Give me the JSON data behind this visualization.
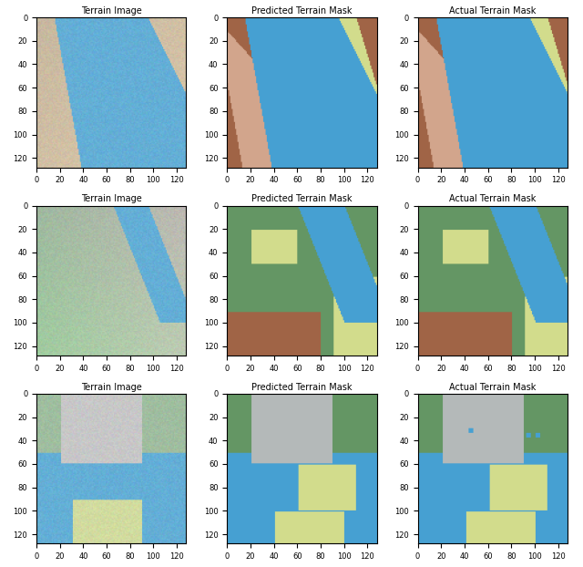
{
  "titles": [
    [
      "Terrain Image",
      "Predicted Terrain Mask",
      "Actual Terrain Mask"
    ],
    [
      "Terrain Image",
      "Predicted Terrain Mask",
      "Actual Terrain Mask"
    ],
    [
      "Terrain Image",
      "Predicted Terrain Mask",
      "Actual Terrain Mask"
    ]
  ],
  "figsize": [
    6.4,
    6.22
  ],
  "dpi": 100,
  "colors": {
    "water_blue": [
      70,
      160,
      210
    ],
    "sand_beige": [
      210,
      190,
      160
    ],
    "brown_dark": [
      160,
      100,
      70
    ],
    "brown_light": [
      210,
      165,
      140
    ],
    "yellow_green": [
      210,
      220,
      140
    ],
    "green_dark": [
      100,
      150,
      100
    ],
    "gray_light": [
      180,
      185,
      185
    ],
    "terrain_water": [
      100,
      175,
      215
    ],
    "terrain_land_r": 205,
    "terrain_land_g": 188,
    "terrain_land_b": 163
  },
  "tick_range": [
    0,
    20,
    40,
    60,
    80,
    100,
    120
  ],
  "img_size": 128
}
